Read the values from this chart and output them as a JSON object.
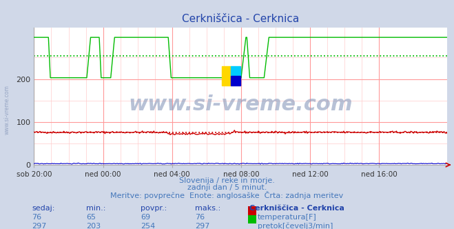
{
  "title": "Cerkniščica - Cerknica",
  "title_color": "#2244aa",
  "bg_color": "#d0d8e8",
  "plot_bg_color": "#ffffff",
  "grid_minor_color": "#ffcccc",
  "grid_major_color": "#ff9999",
  "xlabel_ticks": [
    "sob 20:00",
    "ned 00:00",
    "ned 04:00",
    "ned 08:00",
    "ned 12:00",
    "ned 16:00"
  ],
  "tick_positions": [
    0,
    72,
    144,
    216,
    288,
    360
  ],
  "total_points": 432,
  "ylim": [
    0,
    320
  ],
  "yticks": [
    0,
    100,
    200
  ],
  "temp_color": "#cc0000",
  "flow_color": "#00bb00",
  "height_color": "#0000cc",
  "watermark_text": "www.si-vreme.com",
  "watermark_color": "#8899bb",
  "subtitle1": "Slovenija / reke in morje.",
  "subtitle2": "zadnji dan / 5 minut.",
  "subtitle3": "Meritve: povprečne  Enote: anglosaške  Črta: zadnja meritev",
  "subtitle_color": "#4477bb",
  "table_header": [
    "sedaj:",
    "min.:",
    "povpr.:",
    "maks.:",
    "Cerkniščica - Cerknica"
  ],
  "table_header_color": "#2244aa",
  "table_row1": [
    "76",
    "65",
    "69",
    "76"
  ],
  "table_row2": [
    "297",
    "203",
    "254",
    "297"
  ],
  "table_color": "#4477bb",
  "legend_label1": "temperatura[F]",
  "legend_label2": "pretok[čevelj3/min]",
  "temp_avg_val": 76,
  "flow_avg_val": 254
}
